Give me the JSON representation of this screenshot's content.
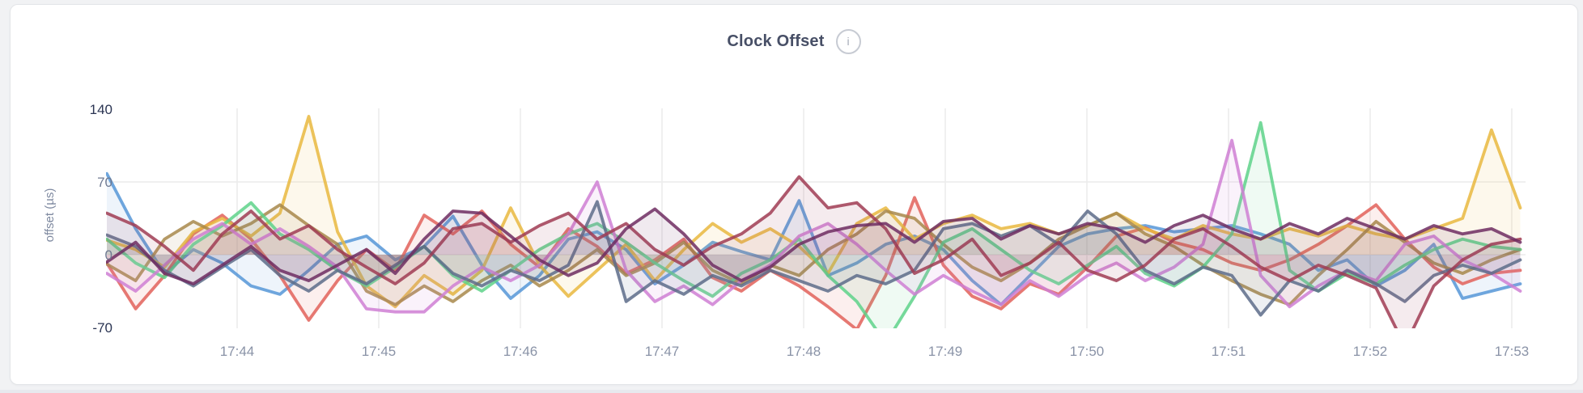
{
  "card": {
    "title": "Clock Offset",
    "info_icon_glyph": "i"
  },
  "chart_data": {
    "type": "line",
    "title": "Clock Offset",
    "xlabel": "",
    "ylabel": "offset (µs)",
    "ylim": [
      -70,
      140
    ],
    "yticks": [
      140,
      70,
      0,
      -70
    ],
    "ytick_colors": [
      "#2b3553",
      "#6f7a92",
      "#6f7a92",
      "#2b3553"
    ],
    "h_gridlines": [
      70,
      0
    ],
    "grid": true,
    "grid_color": "#ececec",
    "legend_position": "none",
    "xticks": [
      "17:44",
      "17:45",
      "17:46",
      "17:47",
      "17:48",
      "17:49",
      "17:50",
      "17:51",
      "17:52",
      "17:53"
    ],
    "x_start_min": 43.08,
    "x_end_min": 53.06,
    "xtick_color": "#8a93a7",
    "series": [
      {
        "name": "blue",
        "color": "#5697d7",
        "values": [
          78,
          25,
          -18,
          5,
          -8,
          -30,
          -38,
          -15,
          10,
          18,
          -5,
          8,
          37,
          -10,
          -42,
          -20,
          15,
          22,
          5,
          -28,
          -10,
          12,
          3,
          -5,
          52,
          -20,
          -8,
          10,
          18,
          5,
          -25,
          -48,
          -20,
          8,
          20,
          25,
          28,
          22,
          25,
          28,
          20,
          10,
          -15,
          -5,
          -30,
          -15,
          10,
          -42,
          -35,
          -28
        ]
      },
      {
        "name": "salmon",
        "color": "#e2625a",
        "values": [
          -8,
          -52,
          -20,
          20,
          38,
          15,
          -20,
          -63,
          -25,
          5,
          -15,
          38,
          20,
          42,
          10,
          -12,
          25,
          8,
          -18,
          -5,
          15,
          -22,
          -35,
          -15,
          -30,
          -50,
          -72,
          -20,
          55,
          -10,
          -40,
          -52,
          -28,
          -38,
          -12,
          18,
          26,
          12,
          5,
          -8,
          -15,
          -5,
          10,
          28,
          48,
          15,
          -12,
          -28,
          -18,
          -15
        ]
      },
      {
        "name": "yellow",
        "color": "#e9b840",
        "values": [
          14,
          5,
          -12,
          22,
          35,
          18,
          40,
          133,
          22,
          -30,
          -50,
          -20,
          -38,
          -15,
          45,
          -10,
          -40,
          -15,
          10,
          -25,
          5,
          30,
          12,
          25,
          8,
          -18,
          30,
          45,
          15,
          30,
          38,
          25,
          30,
          20,
          28,
          40,
          25,
          15,
          28,
          20,
          15,
          25,
          18,
          28,
          20,
          15,
          25,
          35,
          120,
          45
        ]
      },
      {
        "name": "olive",
        "color": "#a8884b",
        "values": [
          -9,
          -25,
          15,
          32,
          18,
          30,
          48,
          28,
          10,
          -35,
          -48,
          -30,
          -45,
          -25,
          -10,
          -30,
          -15,
          5,
          -20,
          -8,
          12,
          -15,
          -28,
          -10,
          -20,
          5,
          20,
          42,
          35,
          10,
          -12,
          -25,
          -8,
          15,
          28,
          40,
          20,
          8,
          -10,
          -25,
          -38,
          -48,
          -20,
          5,
          32,
          12,
          -8,
          -18,
          -5,
          5
        ]
      },
      {
        "name": "green",
        "color": "#5ed28a",
        "values": [
          15,
          -8,
          -22,
          10,
          28,
          50,
          20,
          5,
          -15,
          -30,
          -12,
          8,
          -20,
          -35,
          -15,
          5,
          20,
          30,
          12,
          -8,
          -25,
          -40,
          -18,
          -5,
          15,
          -20,
          -45,
          -85,
          -40,
          12,
          25,
          5,
          -15,
          -28,
          -10,
          8,
          -18,
          -30,
          -12,
          20,
          127,
          -15,
          -35,
          -18,
          -28,
          -10,
          5,
          15,
          8,
          5
        ]
      },
      {
        "name": "orchid",
        "color": "#cf7fd3",
        "values": [
          -18,
          -35,
          -10,
          15,
          30,
          10,
          25,
          8,
          -12,
          -52,
          -55,
          -55,
          -30,
          -12,
          -25,
          -10,
          20,
          70,
          -15,
          -45,
          -30,
          -48,
          -25,
          -10,
          18,
          30,
          10,
          -15,
          -38,
          -20,
          -35,
          -48,
          -25,
          -40,
          -20,
          -8,
          -25,
          -12,
          10,
          110,
          -20,
          -50,
          -30,
          -15,
          -25,
          10,
          18,
          -5,
          -18,
          -35
        ]
      },
      {
        "name": "slate",
        "color": "#5d6c89",
        "values": [
          19,
          8,
          -15,
          -30,
          -12,
          5,
          -20,
          -35,
          -15,
          -28,
          -10,
          8,
          -18,
          -30,
          -15,
          -25,
          -10,
          51,
          -45,
          -25,
          -38,
          -20,
          -30,
          -15,
          -25,
          -35,
          -20,
          -28,
          -15,
          25,
          30,
          18,
          28,
          10,
          42,
          20,
          -15,
          -28,
          -12,
          -20,
          -58,
          -25,
          -35,
          -15,
          -28,
          -45,
          -20,
          -10,
          -18,
          -5
        ]
      },
      {
        "name": "maroon",
        "color": "#a03c54",
        "values": [
          40,
          28,
          8,
          -15,
          20,
          42,
          15,
          28,
          5,
          -12,
          -28,
          -8,
          25,
          30,
          12,
          28,
          40,
          15,
          30,
          5,
          -10,
          8,
          20,
          40,
          75,
          45,
          50,
          25,
          -18,
          -5,
          15,
          -20,
          -8,
          12,
          -15,
          -25,
          -10,
          15,
          25,
          8,
          -12,
          -25,
          -10,
          -20,
          -32,
          -88,
          -30,
          -5,
          10,
          15
        ]
      },
      {
        "name": "plum",
        "color": "#6e2d62",
        "values": [
          -7,
          12,
          -18,
          -28,
          -10,
          8,
          -15,
          -25,
          -10,
          5,
          -18,
          15,
          42,
          40,
          18,
          -5,
          -20,
          -8,
          25,
          44,
          20,
          -10,
          -25,
          -12,
          10,
          22,
          28,
          30,
          12,
          32,
          35,
          15,
          28,
          20,
          30,
          25,
          12,
          28,
          38,
          25,
          15,
          30,
          20,
          35,
          25,
          15,
          28,
          20,
          25,
          12
        ]
      }
    ],
    "line_width": 3.8,
    "line_opacity": 0.85,
    "fill_opacity": 0.1
  }
}
